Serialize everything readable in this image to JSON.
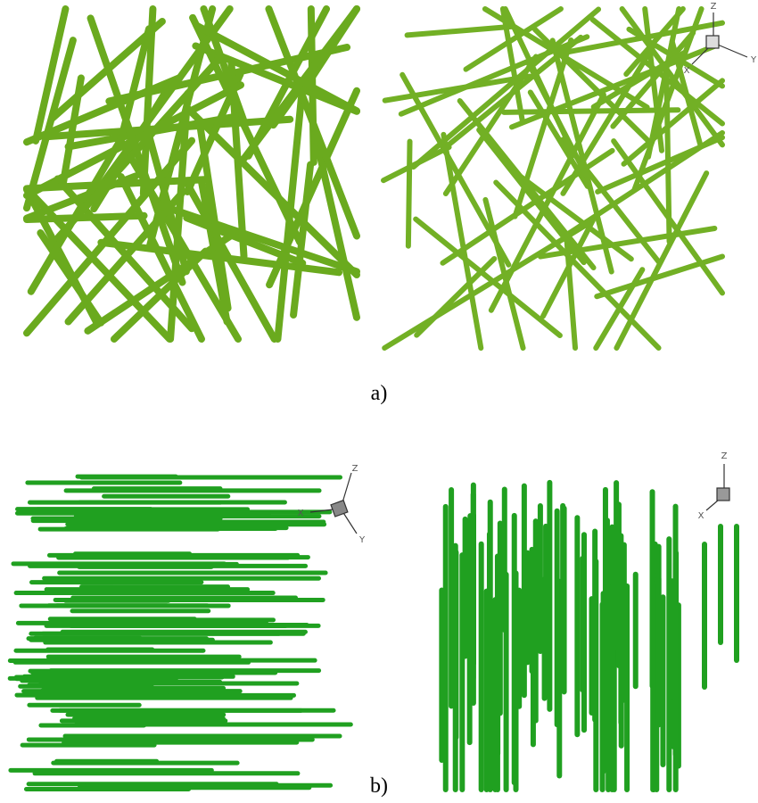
{
  "figure_a": {
    "caption": "a)",
    "triad": {
      "z": "Z",
      "x": "X",
      "y": "Y"
    }
  },
  "figure_b": {
    "caption": "b)",
    "triad_left": {
      "z": "Z",
      "x": "X",
      "y": "Y"
    },
    "triad_right": {
      "z": "Z",
      "x": "X"
    }
  }
}
